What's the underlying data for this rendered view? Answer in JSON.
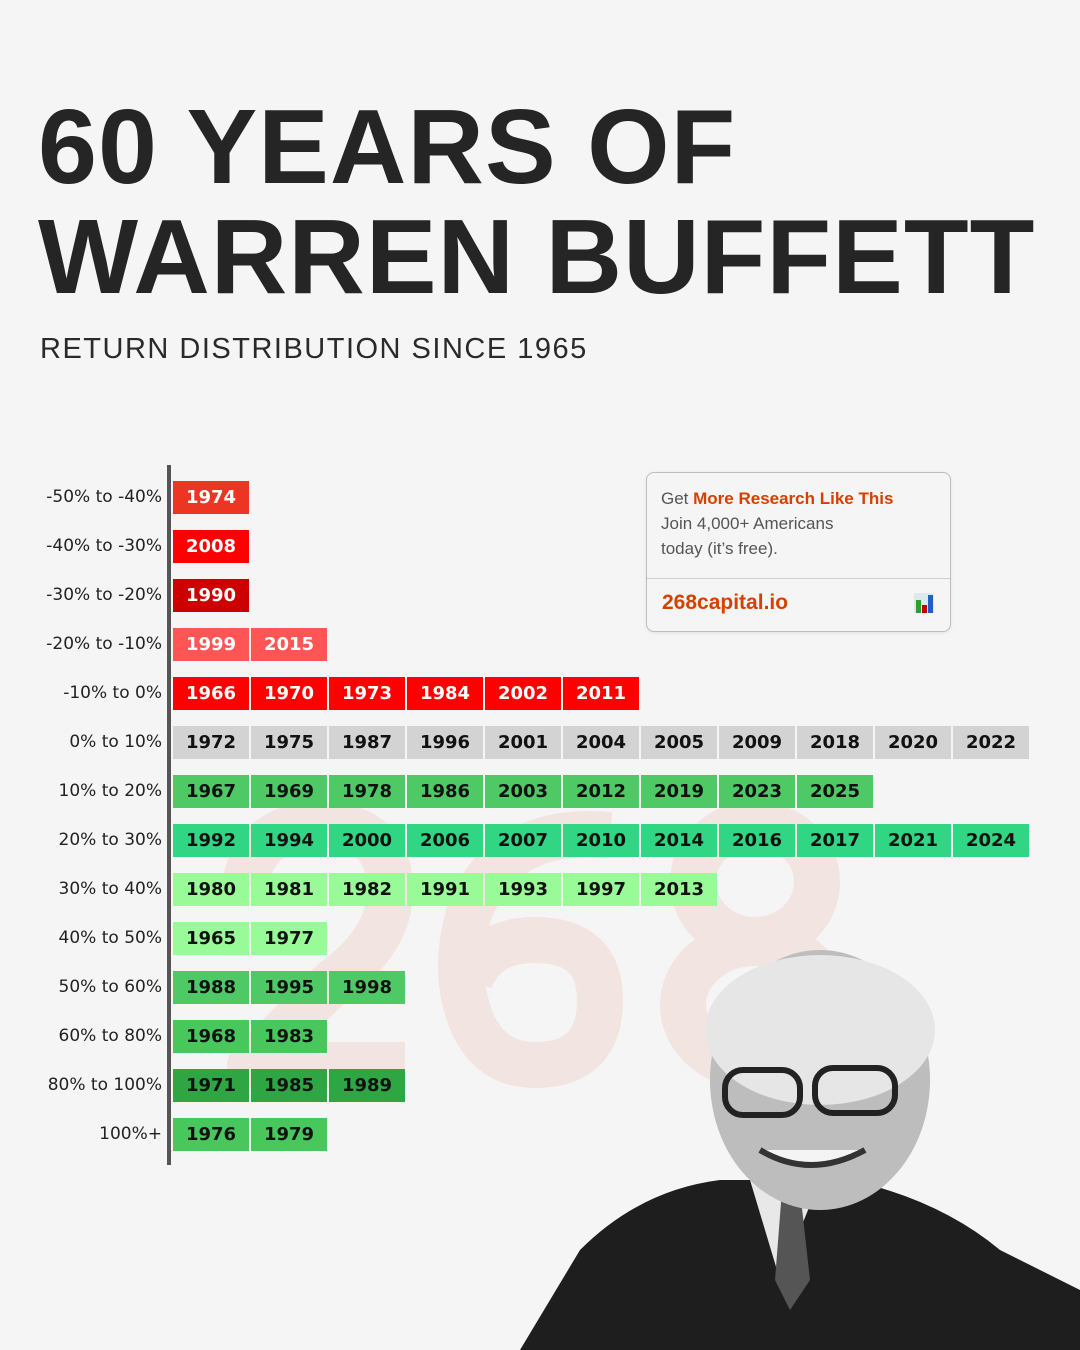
{
  "header": {
    "title_line1": "60 YEARS OF",
    "title_line2": "WARREN BUFFETT",
    "subtitle": "RETURN DISTRIBUTION SINCE 1965"
  },
  "cta": {
    "prefix": "Get ",
    "highlight": "More Research Like This",
    "line2": "Join 4,000+ Americans",
    "line3": "today (it’s free).",
    "link": "268capital.io",
    "icon": "bar-chart-icon",
    "accent_color": "#d64000"
  },
  "watermark": "268",
  "chart_data": {
    "type": "table",
    "title": "RETURN DISTRIBUTION SINCE 1965",
    "rows": [
      {
        "label": "-50% to -40%",
        "color": "#ec3522",
        "text_color": "#ffffff",
        "years": [
          "1974"
        ]
      },
      {
        "label": "-40% to -30%",
        "color": "#ff0000",
        "text_color": "#ffffff",
        "years": [
          "2008"
        ]
      },
      {
        "label": "-30% to -20%",
        "color": "#cc0000",
        "text_color": "#ffffff",
        "years": [
          "1990"
        ]
      },
      {
        "label": "-20% to -10%",
        "color": "#ff5555",
        "text_color": "#ffffff",
        "years": [
          "1999",
          "2015"
        ]
      },
      {
        "label": "-10% to 0%",
        "color": "#ff0000",
        "text_color": "#ffffff",
        "years": [
          "1966",
          "1970",
          "1973",
          "1984",
          "2002",
          "2011"
        ]
      },
      {
        "label": "0% to 10%",
        "color": "#d3d3d3",
        "text_color": "#111111",
        "years": [
          "1972",
          "1975",
          "1987",
          "1996",
          "2001",
          "2004",
          "2005",
          "2009",
          "2018",
          "2020",
          "2022"
        ]
      },
      {
        "label": "10% to 20%",
        "color": "#4fc866",
        "text_color": "#111111",
        "years": [
          "1967",
          "1969",
          "1978",
          "1986",
          "2003",
          "2012",
          "2019",
          "2023",
          "2025"
        ]
      },
      {
        "label": "20% to 30%",
        "color": "#31d684",
        "text_color": "#111111",
        "years": [
          "1992",
          "1994",
          "2000",
          "2006",
          "2007",
          "2010",
          "2014",
          "2016",
          "2017",
          "2021",
          "2024"
        ]
      },
      {
        "label": "30% to 40%",
        "color": "#98fb98",
        "text_color": "#111111",
        "years": [
          "1980",
          "1981",
          "1982",
          "1991",
          "1993",
          "1997",
          "2013"
        ]
      },
      {
        "label": "40% to 50%",
        "color": "#98fb98",
        "text_color": "#111111",
        "years": [
          "1965",
          "1977"
        ]
      },
      {
        "label": "50% to 60%",
        "color": "#4fc866",
        "text_color": "#111111",
        "years": [
          "1988",
          "1995",
          "1998"
        ]
      },
      {
        "label": "60% to 80%",
        "color": "#47c75c",
        "text_color": "#111111",
        "years": [
          "1968",
          "1983"
        ]
      },
      {
        "label": "80% to 100%",
        "color": "#2ea644",
        "text_color": "#111111",
        "years": [
          "1971",
          "1985",
          "1989"
        ]
      },
      {
        "label": "100%+",
        "color": "#47c75c",
        "text_color": "#111111",
        "years": [
          "1976",
          "1979"
        ]
      }
    ]
  }
}
